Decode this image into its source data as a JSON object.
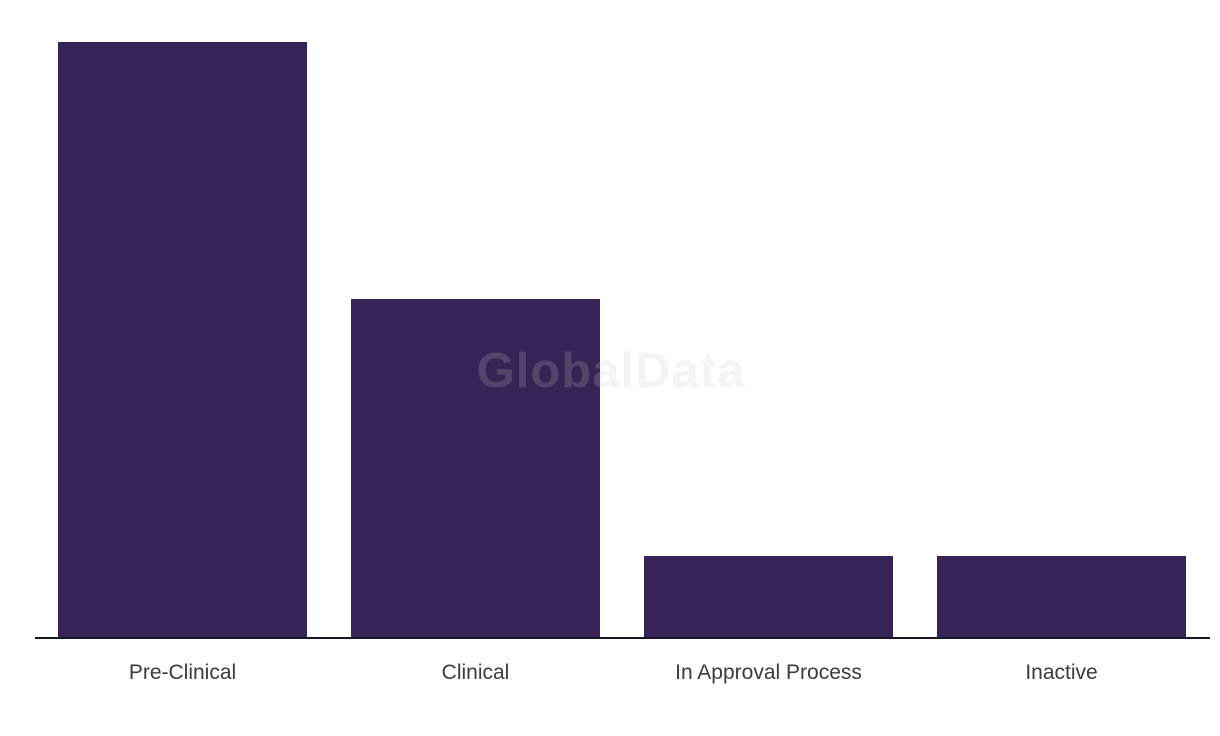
{
  "watermark": {
    "text": "GlobalData",
    "color_hex": "#cacaca",
    "opacity": 0.2
  },
  "chart_data": {
    "type": "bar",
    "title": "",
    "xlabel": "",
    "ylabel": "",
    "categories": [
      "Pre-Clinical",
      "Clinical",
      "In Approval Process",
      "Inactive"
    ],
    "values": [
      596,
      339,
      81,
      81
    ],
    "values_are_estimated_relative_heights": true,
    "ylim": [
      0,
      598
    ],
    "grid": false,
    "legend": false,
    "bar_color": "#362457",
    "axis_line_color": "#15162b",
    "label_color": "#3b3b3b",
    "background_color": "#ffffff"
  }
}
